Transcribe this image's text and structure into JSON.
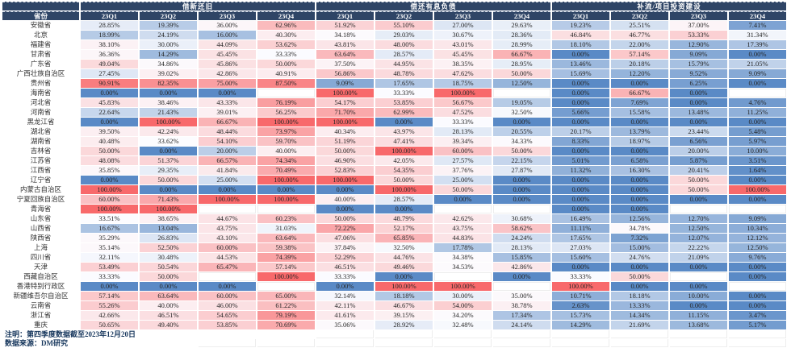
{
  "notes": {
    "line1": "注明：第四季度数据截至2023年12月20日",
    "line2": "数据来源：DM研究"
  },
  "colors": {
    "header_bg": "#2F4566",
    "note_color": "#17375D"
  },
  "chart_data": {
    "type": "heatmap",
    "row_header": "省份",
    "groups": [
      "借新还旧",
      "偿还有息负债",
      "补流/项目投资建设"
    ],
    "quarters": [
      "23Q1",
      "23Q2",
      "23Q3",
      "23Q4"
    ],
    "value_format": "percent_2dp",
    "color_scale": {
      "low": "#5A8AC6",
      "mid": "#FCFCFF",
      "high": "#F8696B",
      "domain": [
        0,
        100
      ],
      "midpoint": 33.5
    },
    "rows": [
      {
        "province": "安徽省",
        "values": [
          28.85,
          19.39,
          36.0,
          62.96,
          51.92,
          55.1,
          27.0,
          29.63,
          19.23,
          25.51,
          37.0,
          7.41
        ]
      },
      {
        "province": "北京",
        "values": [
          18.99,
          24.19,
          16.0,
          40.3,
          34.18,
          29.03,
          30.67,
          28.36,
          46.84,
          46.77,
          53.33,
          31.34
        ]
      },
      {
        "province": "福建省",
        "values": [
          38.1,
          30.0,
          44.09,
          53.62,
          43.81,
          48.0,
          43.01,
          28.99,
          18.1,
          22.0,
          12.9,
          17.39
        ]
      },
      {
        "province": "甘肃省",
        "values": [
          36.36,
          14.29,
          45.45,
          33.33,
          63.64,
          28.57,
          45.45,
          66.67,
          0.0,
          57.14,
          9.09,
          0.0
        ]
      },
      {
        "province": "广东省",
        "values": [
          49.04,
          34.86,
          45.86,
          50.0,
          37.5,
          44.95,
          38.35,
          28.95,
          13.46,
          20.18,
          15.79,
          21.05
        ]
      },
      {
        "province": "广西壮族自治区",
        "values": [
          27.45,
          39.02,
          42.86,
          40.91,
          56.86,
          48.78,
          47.62,
          50.0,
          15.69,
          12.2,
          9.52,
          9.09
        ]
      },
      {
        "province": "贵州省",
        "values": [
          90.91,
          82.35,
          75.0,
          87.5,
          9.09,
          17.65,
          18.75,
          12.5,
          0.0,
          0.0,
          6.25,
          0.0
        ]
      },
      {
        "province": "海南省",
        "values": [
          0.0,
          0.0,
          0.0,
          null,
          100.0,
          33.33,
          100.0,
          null,
          0.0,
          66.67,
          0.0,
          null
        ]
      },
      {
        "province": "河北省",
        "values": [
          45.83,
          38.46,
          43.33,
          76.19,
          54.17,
          53.85,
          56.67,
          19.05,
          0.0,
          7.69,
          0.0,
          4.76
        ]
      },
      {
        "province": "河南省",
        "values": [
          22.64,
          21.43,
          39.01,
          56.25,
          71.7,
          62.99,
          47.52,
          32.5,
          5.66,
          15.58,
          13.48,
          11.25
        ]
      },
      {
        "province": "黑龙江省",
        "values": [
          0.0,
          100.0,
          66.67,
          100.0,
          100.0,
          0.0,
          33.33,
          0.0,
          0.0,
          0.0,
          0.0,
          0.0
        ]
      },
      {
        "province": "湖北省",
        "values": [
          39.5,
          42.24,
          48.44,
          73.97,
          40.34,
          43.97,
          28.13,
          20.55,
          20.17,
          13.79,
          23.44,
          5.48
        ]
      },
      {
        "province": "湖南省",
        "values": [
          40.48,
          33.62,
          54.1,
          59.7,
          51.19,
          47.41,
          39.34,
          34.33,
          8.33,
          18.97,
          6.56,
          5.97
        ]
      },
      {
        "province": "吉林省",
        "values": [
          50.0,
          0.0,
          20.0,
          40.0,
          50.0,
          100.0,
          60.0,
          50.0,
          0.0,
          0.0,
          20.0,
          10.0
        ]
      },
      {
        "province": "江苏省",
        "values": [
          48.08,
          51.37,
          66.57,
          74.34,
          46.9,
          42.05,
          27.57,
          22.15,
          5.01,
          6.58,
          5.87,
          3.51
        ]
      },
      {
        "province": "江西省",
        "values": [
          35.85,
          29.35,
          41.84,
          70.49,
          52.83,
          54.35,
          37.76,
          27.87,
          11.32,
          16.3,
          20.41,
          1.64
        ]
      },
      {
        "province": "辽宁省",
        "values": [
          0.0,
          50.0,
          25.0,
          100.0,
          100.0,
          50.0,
          25.0,
          0.0,
          0.0,
          0.0,
          50.0,
          0.0
        ]
      },
      {
        "province": "内蒙古自治区",
        "values": [
          100.0,
          0.0,
          0.0,
          0.0,
          0.0,
          100.0,
          50.0,
          0.0,
          0.0,
          0.0,
          50.0,
          100.0
        ]
      },
      {
        "province": "宁夏回族自治区",
        "values": [
          60.0,
          71.43,
          100.0,
          100.0,
          40.0,
          28.57,
          0.0,
          0.0,
          0.0,
          0.0,
          0.0,
          0.0
        ]
      },
      {
        "province": "青海省",
        "values": [
          100.0,
          100.0,
          null,
          null,
          0.0,
          0.0,
          null,
          null,
          0.0,
          0.0,
          null,
          null
        ]
      },
      {
        "province": "山东省",
        "values": [
          33.51,
          38.65,
          44.67,
          60.23,
          50.0,
          48.79,
          42.62,
          30.68,
          16.49,
          12.56,
          12.7,
          9.09
        ]
      },
      {
        "province": "山西省",
        "values": [
          16.67,
          13.04,
          43.75,
          31.03,
          72.22,
          52.17,
          43.75,
          58.62,
          11.11,
          34.78,
          12.5,
          10.34
        ]
      },
      {
        "province": "陕西省",
        "values": [
          35.29,
          26.83,
          43.1,
          63.64,
          47.06,
          65.85,
          44.83,
          24.24,
          17.65,
          7.32,
          12.07,
          12.12
        ]
      },
      {
        "province": "上海",
        "values": [
          35.14,
          52.5,
          60.0,
          59.38,
          37.84,
          32.5,
          17.78,
          28.13,
          27.03,
          15.0,
          22.22,
          12.5
        ]
      },
      {
        "province": "四川省",
        "values": [
          32.11,
          30.48,
          44.53,
          74.39,
          52.29,
          44.76,
          34.38,
          15.85,
          15.6,
          24.76,
          21.09,
          9.76
        ]
      },
      {
        "province": "天津",
        "values": [
          53.49,
          50.54,
          65.47,
          57.14,
          46.51,
          49.46,
          34.53,
          42.86,
          0.0,
          0.0,
          0.0,
          0.0
        ]
      },
      {
        "province": "西藏自治区",
        "values": [
          33.33,
          50.0,
          null,
          100.0,
          33.33,
          0.0,
          null,
          0.0,
          33.33,
          50.0,
          null,
          0.0
        ]
      },
      {
        "province": "香港特别行政区",
        "values": [
          0.0,
          0.0,
          0.0,
          null,
          0.0,
          100.0,
          100.0,
          null,
          100.0,
          0.0,
          0.0,
          null
        ]
      },
      {
        "province": "新疆维吾尔自治区",
        "values": [
          57.14,
          63.64,
          60.0,
          65.0,
          32.14,
          18.18,
          30.0,
          35.0,
          10.71,
          18.18,
          10.0,
          0.0
        ]
      },
      {
        "province": "云南省",
        "values": [
          55.26,
          40.0,
          46.0,
          61.22,
          42.11,
          46.67,
          54.0,
          38.78,
          2.63,
          13.33,
          0.0,
          0.0
        ]
      },
      {
        "province": "浙江省",
        "values": [
          42.66,
          46.51,
          54.65,
          79.19,
          41.61,
          39.15,
          34.2,
          17.34,
          15.73,
          14.34,
          11.15,
          3.47
        ]
      },
      {
        "province": "重庆",
        "values": [
          50.65,
          49.4,
          53.85,
          70.69,
          35.06,
          28.92,
          32.48,
          24.14,
          14.29,
          21.69,
          13.68,
          5.17
        ]
      }
    ]
  }
}
